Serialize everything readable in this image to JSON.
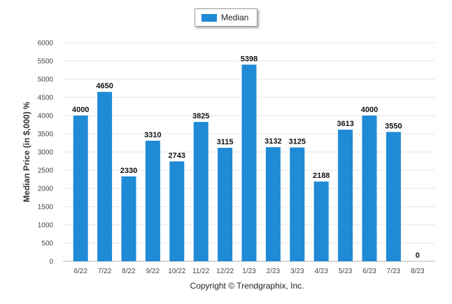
{
  "legend": {
    "label": "Median"
  },
  "footer": {
    "copyright": "Copyright © Trendgraphix, Inc."
  },
  "colors": {
    "bar": "#1f8ad6",
    "grid": "#e4e4e4",
    "axis": "#b0b0b0"
  },
  "chart_data": {
    "type": "bar",
    "title": "",
    "xlabel": "",
    "ylabel": "Median Price (in $,000) %",
    "categories": [
      "6/22",
      "7/22",
      "8/22",
      "9/22",
      "10/22",
      "11/22",
      "12/22",
      "1/23",
      "2/23",
      "3/23",
      "4/23",
      "5/23",
      "6/23",
      "7/23",
      "8/23"
    ],
    "series": [
      {
        "name": "Median",
        "values": [
          4000,
          4650,
          2330,
          3310,
          2743,
          3825,
          3115,
          5398,
          3132,
          3125,
          2188,
          3613,
          4000,
          3550,
          0
        ]
      }
    ],
    "ylim": [
      0,
      6000
    ],
    "yticks": [
      0,
      500,
      1000,
      1500,
      2000,
      2500,
      3000,
      3500,
      4000,
      4500,
      5000,
      5500,
      6000
    ],
    "grid": true,
    "legend_position": "top-center",
    "data_labels": true
  }
}
